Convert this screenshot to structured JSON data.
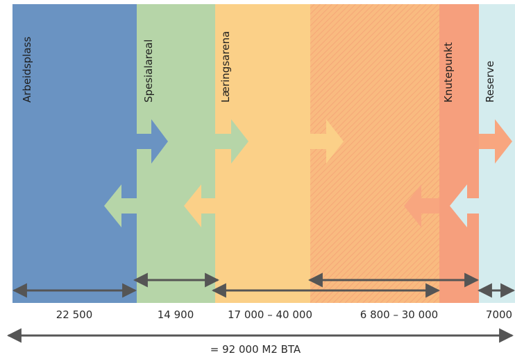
{
  "zones": [
    {
      "id": "arbeidsplass",
      "label": "Arbeidsplass",
      "color": "#6a93c2"
    },
    {
      "id": "spesialareal",
      "label": "Spesialareal",
      "color": "#b6d5a8"
    },
    {
      "id": "laeringsarena",
      "label": "Læringsarena",
      "color": "#fbd088"
    },
    {
      "id": "overgang",
      "label": "",
      "color": "#f9bb80"
    },
    {
      "id": "knutepunkt",
      "label": "Knutepunkt",
      "color": "#f69f7d"
    },
    {
      "id": "reserve",
      "label": "Reserve",
      "color": "#d4ecee"
    }
  ],
  "values": [
    "22 500",
    "14 900",
    "17 000 – 40 000",
    "6 800 – 30 000",
    "7000"
  ],
  "total": "= 92 000 M2 BTA",
  "colors": {
    "measure_arrow": "#555555",
    "flow_blue": "#6a93c2",
    "flow_green": "#b6d5a8",
    "flow_yellow": "#fbd088",
    "flow_orange": "#f8a67f",
    "flow_cyan": "#d4ecee"
  }
}
